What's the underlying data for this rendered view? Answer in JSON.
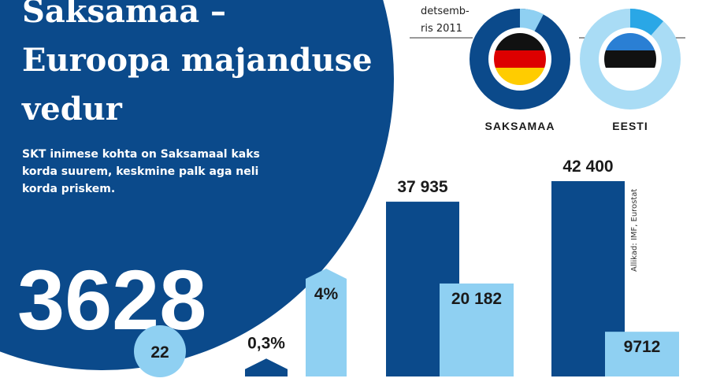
{
  "title_lines": [
    "Saksamaa –",
    "Euroopa majanduse",
    "vedur"
  ],
  "subtitle_lines": [
    "SKT inimese kohta on Saksamaal kaks",
    "korda suurem, keskmine palk aga neli",
    "korda priskem."
  ],
  "big_number": "3628",
  "circle_number": "22",
  "date_lines": [
    "detsemb-",
    "ris 2011"
  ],
  "donuts": [
    {
      "label": "SAKSAMAA"
    },
    {
      "label": "EESTI"
    }
  ],
  "source": "Allikad: IMF, Eurostat",
  "bars": [
    {
      "value": 0.3,
      "label": "0,3%",
      "color": "#0b4a8b"
    },
    {
      "value": 4,
      "label": "4%",
      "color": "#8fd0f2"
    },
    {
      "value": 37935,
      "label": "37 935",
      "color": "#0b4a8b"
    },
    {
      "value": 20182,
      "label": "20 182",
      "color": "#8fd0f2"
    },
    {
      "value": 42400,
      "label": "42 400",
      "color": "#0b4a8b"
    },
    {
      "value": 9712,
      "label": "9712",
      "color": "#8fd0f2"
    }
  ]
}
